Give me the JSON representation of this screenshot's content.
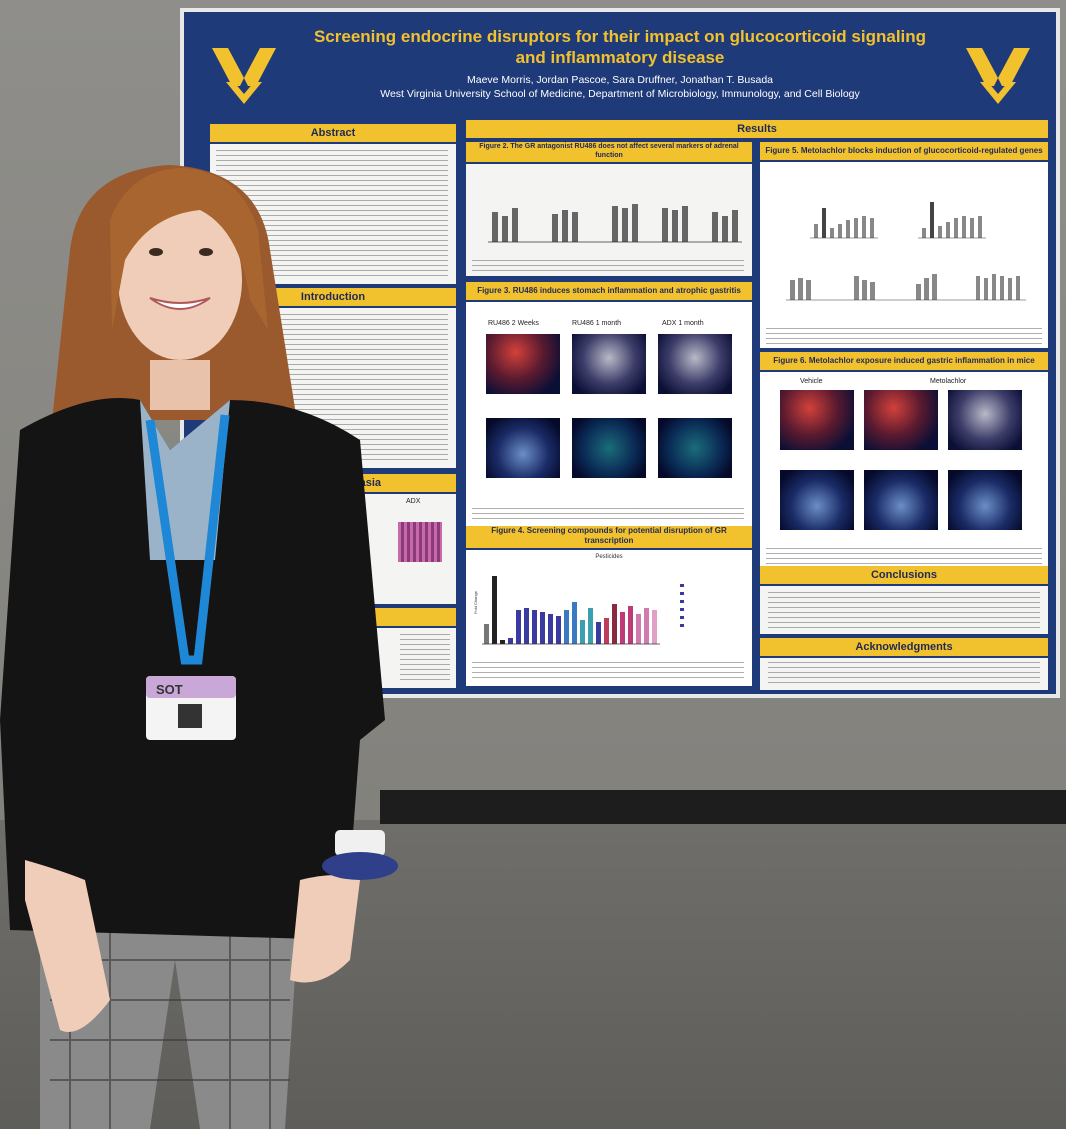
{
  "poster": {
    "title_line1": "Screening endocrine disruptors for their impact on glucocorticoid signaling",
    "title_line2": "and inflammatory disease",
    "authors": "Maeve Morris, Jordan Pascoe, Sara Druffner, Jonathan T. Busada",
    "institution": "West Virginia University School of Medicine, Department of Microbiology, Immunology, and Cell Biology",
    "sections": {
      "abstract": "Abstract",
      "introduction": "Introduction",
      "gastric": "gastric metaplasia",
      "results": "Results",
      "conclusions": "Conclusions",
      "acknowledgments": "Acknowledgments"
    },
    "figures": {
      "fig2": "Figure 2. The GR antagonist RU486 does not affect several markers of adrenal function",
      "fig3": "Figure 3. RU486 induces stomach inflammation and atrophic gastritis",
      "fig4": "Figure 4. Screening compounds for potential disruption of GR transcription",
      "fig5": "Figure 5. Metolachlor blocks induction of glucocorticoid-regulated genes",
      "fig6": "Figure 6. Metolachlor exposure induced gastric inflammation in mice"
    },
    "fig3_labels": [
      "RU486 2 Weeks",
      "RU486 1 month",
      "ADX 1 month"
    ],
    "fig6_labels": [
      "Vehicle",
      "Metolachlor"
    ],
    "fig4_chart_title": "Pesticides",
    "fig4_ylabel": "Fold Change",
    "gastric_label": "ADX"
  },
  "badge": {
    "brand": "SOT"
  },
  "colors": {
    "poster_blue": "#1f3a78",
    "poster_gold": "#f2c12e",
    "blazer": "#141414",
    "hair": "#9a5a2e",
    "lanyard": "#1e88d6"
  }
}
